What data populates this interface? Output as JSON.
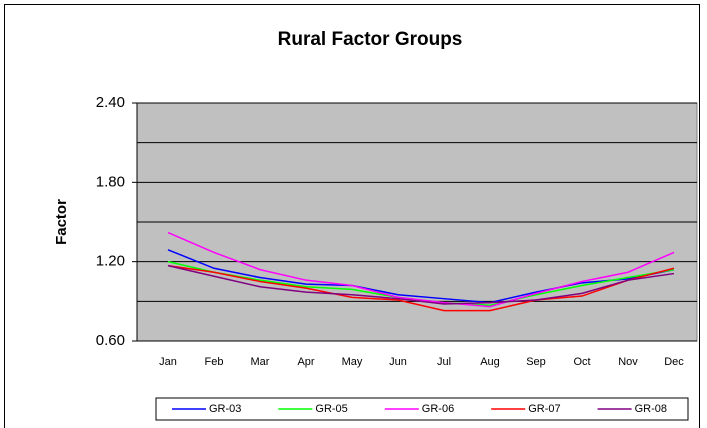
{
  "chart_data": {
    "type": "line",
    "title": "Rural Factor Groups",
    "y_label": "Factor",
    "categories": [
      "Jan",
      "Feb",
      "Mar",
      "Apr",
      "May",
      "Jun",
      "Jul",
      "Aug",
      "Sep",
      "Oct",
      "Nov",
      "Dec"
    ],
    "series": [
      {
        "name": "GR-03",
        "color": "#0000ff",
        "values": [
          1.29,
          1.15,
          1.08,
          1.03,
          1.02,
          0.95,
          0.92,
          0.89,
          0.97,
          1.04,
          1.07,
          1.14
        ]
      },
      {
        "name": "GR-05",
        "color": "#00ff00",
        "values": [
          1.2,
          1.12,
          1.06,
          1.01,
          0.99,
          0.93,
          0.89,
          0.87,
          0.95,
          1.02,
          1.08,
          1.14
        ]
      },
      {
        "name": "GR-06",
        "color": "#ff00ff",
        "values": [
          1.42,
          1.27,
          1.14,
          1.06,
          1.02,
          0.93,
          0.89,
          0.86,
          0.96,
          1.05,
          1.12,
          1.27
        ]
      },
      {
        "name": "GR-07",
        "color": "#ff0000",
        "values": [
          1.17,
          1.12,
          1.05,
          1.0,
          0.93,
          0.91,
          0.83,
          0.83,
          0.91,
          0.94,
          1.06,
          1.15
        ]
      },
      {
        "name": "GR-08",
        "color": "#800080",
        "values": [
          1.17,
          1.09,
          1.01,
          0.97,
          0.95,
          0.92,
          0.88,
          0.89,
          0.91,
          0.96,
          1.06,
          1.11
        ]
      }
    ],
    "ylim": [
      0.6,
      2.4
    ],
    "yticks": [
      {
        "value": 0.6,
        "label": "0.60"
      },
      {
        "value": 1.2,
        "label": "1.20"
      },
      {
        "value": 1.8,
        "label": "1.80"
      },
      {
        "value": 2.4,
        "label": "2.40"
      }
    ],
    "minor_grid": [
      0.9,
      1.5,
      2.1
    ],
    "grid": true,
    "plot_background": "#c0c0c0",
    "legend": "bottom"
  }
}
